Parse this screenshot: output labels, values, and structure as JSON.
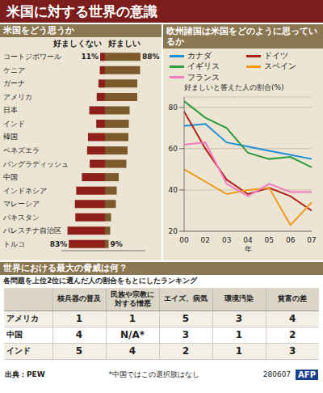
{
  "title": "米国に対する世界の意識",
  "chart_data": [
    {
      "type": "bar",
      "orientation": "horizontal",
      "title": "米国をどう思うか",
      "categories": [
        "コートジボワール",
        "ケニア",
        "ガーナ",
        "アメリカ",
        "日本",
        "インド",
        "韓国",
        "ベネズエラ",
        "バングラディッシュ",
        "中国",
        "インドネシア",
        "マレーシア",
        "パキスタン",
        "パレスチナ自治区",
        "トルコ"
      ],
      "series": [
        {
          "name": "好ましくない",
          "color": "#8e1f1a",
          "values": [
            11,
            12,
            15,
            19,
            36,
            20,
            39,
            41,
            35,
            53,
            66,
            69,
            68,
            86,
            83
          ],
          "value_labels": [
            "11%",
            null,
            null,
            null,
            null,
            null,
            null,
            null,
            null,
            null,
            null,
            null,
            null,
            null,
            "83%"
          ]
        },
        {
          "name": "好ましい",
          "color": "#7d5a2c",
          "values": [
            88,
            87,
            80,
            80,
            61,
            59,
            58,
            56,
            53,
            34,
            29,
            27,
            15,
            13,
            9
          ],
          "value_labels": [
            "88%",
            null,
            null,
            null,
            null,
            null,
            null,
            null,
            null,
            null,
            null,
            null,
            null,
            null,
            "9%"
          ]
        }
      ],
      "xlim": [
        0,
        100
      ],
      "tick_labels": "y"
    },
    {
      "type": "line",
      "title": "欧州諸国は米国をどのように思っているか",
      "y_label": "好ましいと答えた人の割合(%)",
      "x_label": "年",
      "x": [
        "00",
        "02",
        "03",
        "04",
        "05",
        "06",
        "07"
      ],
      "series": [
        {
          "name": "カナダ",
          "color": "#1e8fd6",
          "values": [
            71,
            72,
            63,
            61,
            59,
            57,
            55
          ]
        },
        {
          "name": "ドイツ",
          "color": "#b0221c",
          "values": [
            78,
            60,
            45,
            38,
            41,
            37,
            30
          ]
        },
        {
          "name": "イギリス",
          "color": "#2e9b3e",
          "values": [
            83,
            75,
            70,
            58,
            55,
            56,
            51
          ]
        },
        {
          "name": "スペイン",
          "color": "#f09a1a",
          "values": [
            50,
            44,
            38,
            40,
            41,
            23,
            34
          ]
        },
        {
          "name": "フランス",
          "color": "#f07cc0",
          "values": [
            62,
            63,
            43,
            37,
            43,
            39,
            39
          ]
        }
      ],
      "ylim": [
        20,
        85
      ],
      "yticks": [
        20,
        40,
        60,
        80
      ],
      "grid": true,
      "legend": "top"
    }
  ],
  "table": {
    "title": "世界における最大の脅威は何？",
    "subtitle": "各問題を上位2位に選んだ人の割合をもとにしたランキング",
    "columns": [
      "核兵器の普及",
      "民族や宗教に対する憎悪",
      "エイズ、病気",
      "環境汚染",
      "貧富の差"
    ],
    "rows": [
      {
        "label": "アメリカ",
        "values": [
          1,
          1,
          5,
          3,
          4
        ]
      },
      {
        "label": "中国",
        "values": [
          4,
          "N/A*",
          3,
          1,
          2
        ]
      },
      {
        "label": "インド",
        "values": [
          5,
          4,
          2,
          1,
          3
        ]
      }
    ]
  },
  "footer": {
    "source": "出典：PEW",
    "note": "*中国ではこの選択肢はなし",
    "code": "280607",
    "credit": "AFP"
  }
}
